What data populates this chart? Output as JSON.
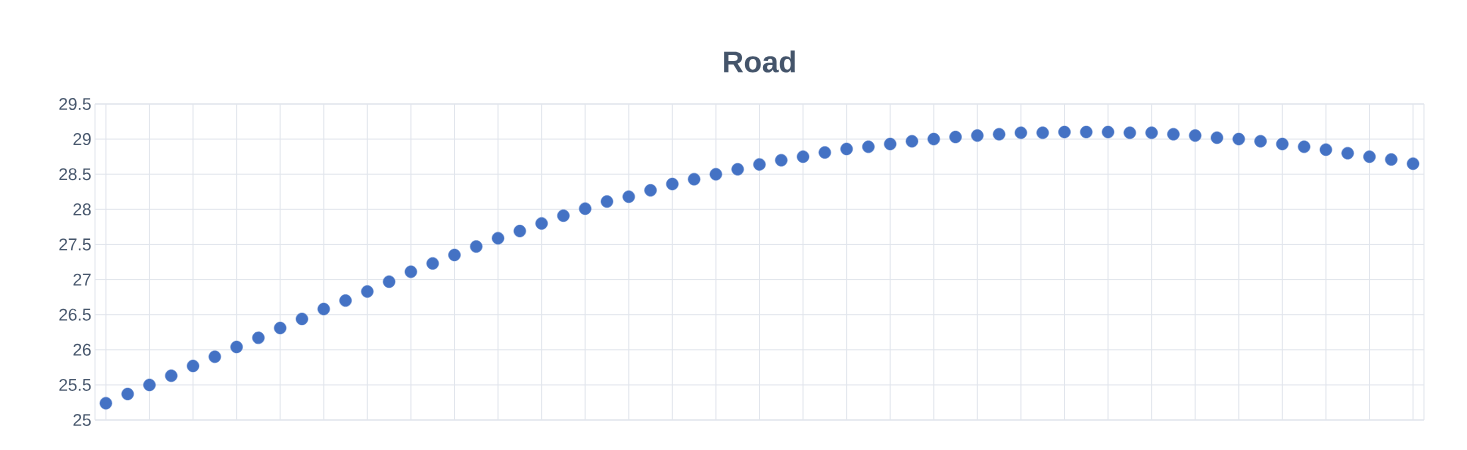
{
  "chart_data": {
    "type": "scatter",
    "title": "Road",
    "categories": [
      null,
      null,
      null,
      null,
      null,
      null,
      null,
      null,
      null,
      null,
      null,
      null,
      null,
      null,
      null,
      null,
      null,
      null,
      null,
      null,
      null,
      null,
      null,
      null,
      null,
      null,
      null,
      null,
      null,
      null,
      null,
      null,
      null,
      null,
      null,
      null,
      null,
      null,
      null,
      null,
      null,
      null,
      null,
      null,
      null,
      null,
      null,
      null,
      null,
      null,
      null,
      null,
      null,
      null,
      null,
      null,
      null,
      null,
      null,
      null,
      null
    ],
    "values": [
      25.24,
      25.37,
      25.5,
      25.63,
      25.77,
      25.9,
      26.04,
      26.17,
      26.31,
      26.44,
      26.58,
      26.7,
      26.83,
      26.97,
      27.11,
      27.23,
      27.35,
      27.47,
      27.59,
      27.69,
      27.8,
      27.91,
      28.01,
      28.11,
      28.18,
      28.27,
      28.36,
      28.43,
      28.5,
      28.57,
      28.64,
      28.7,
      28.75,
      28.81,
      28.86,
      28.89,
      28.93,
      28.97,
      29.0,
      29.03,
      29.05,
      29.07,
      29.09,
      29.09,
      29.1,
      29.1,
      29.1,
      29.09,
      29.09,
      29.07,
      29.05,
      29.02,
      29.0,
      28.97,
      28.93,
      28.89,
      28.85,
      28.8,
      28.75,
      28.71,
      28.65
    ],
    "color": "#4472c4",
    "ylim": [
      25,
      29.5
    ],
    "yticks": [
      25,
      25.5,
      26,
      26.5,
      27,
      27.5,
      28,
      28.5,
      29,
      29.5
    ],
    "grid": true
  }
}
